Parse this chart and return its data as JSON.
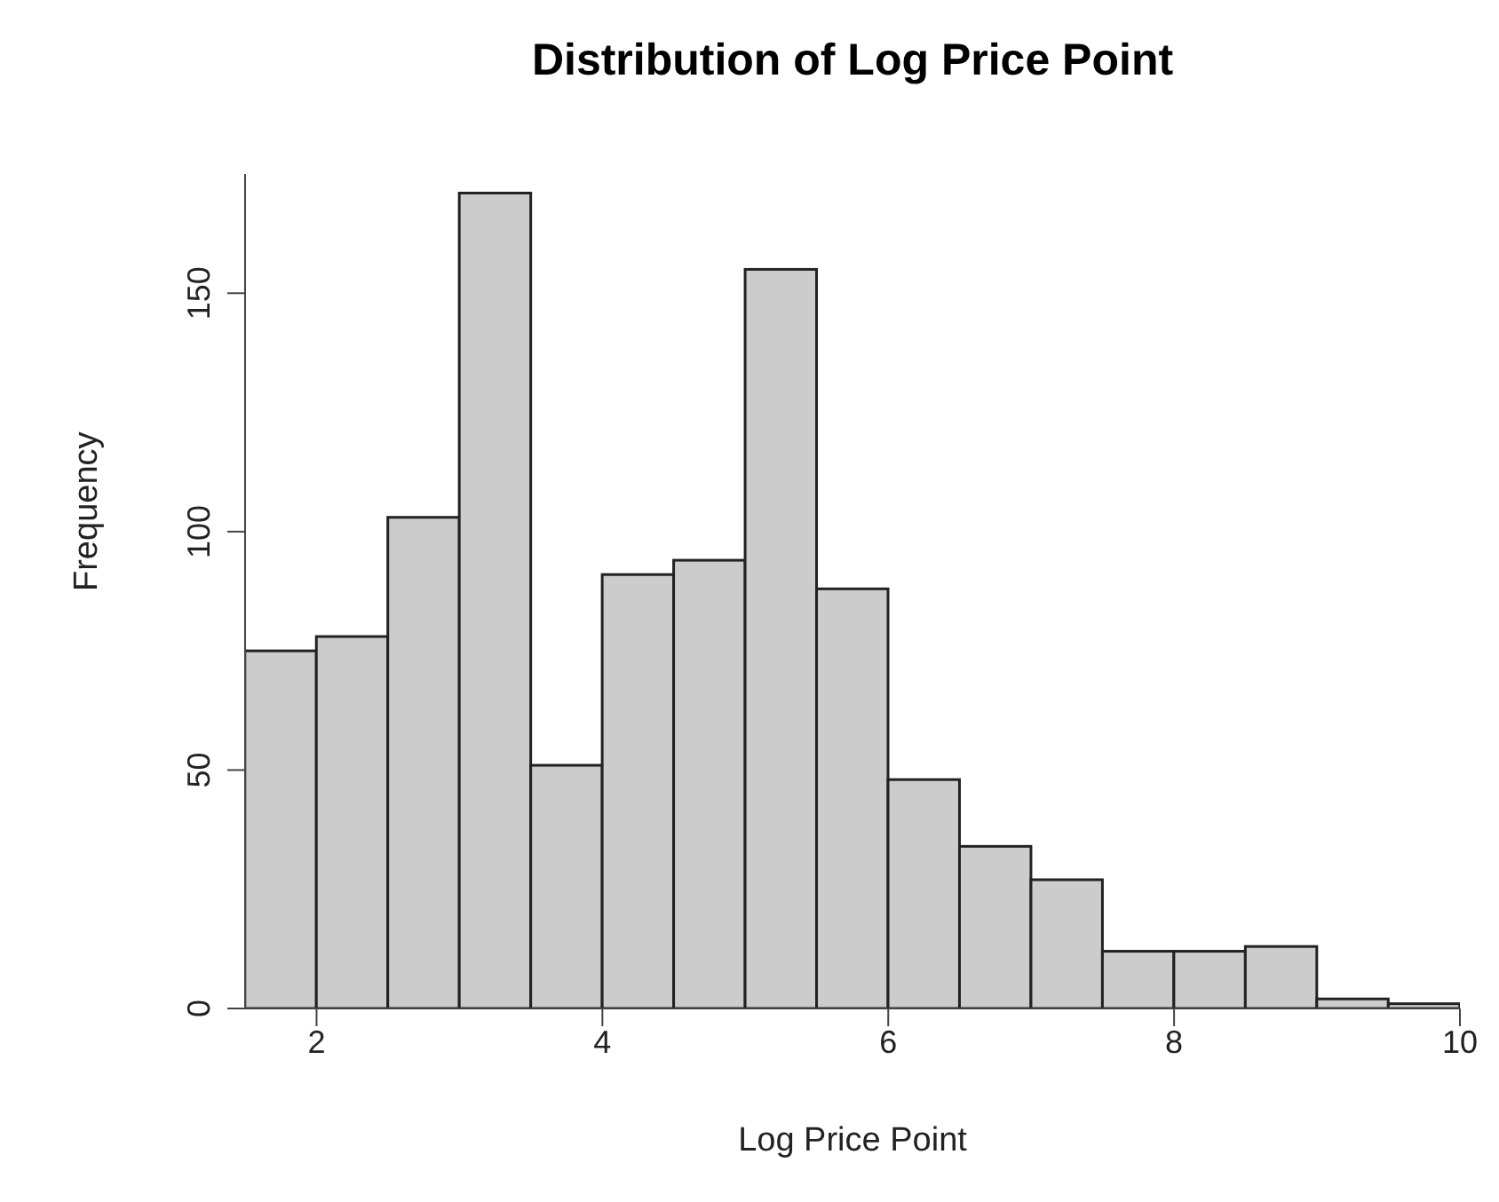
{
  "chart_data": {
    "type": "histogram",
    "title": "Distribution of Log Price Point",
    "xlabel": "Log Price Point",
    "ylabel": "Frequency",
    "bins": [
      1.5,
      2,
      2.5,
      3,
      3.5,
      4,
      4.5,
      5,
      5.5,
      6,
      6.5,
      7,
      7.5,
      8,
      8.5,
      9,
      9.5,
      10
    ],
    "values": [
      75,
      78,
      103,
      171,
      51,
      91,
      94,
      155,
      88,
      48,
      34,
      27,
      12,
      12,
      13,
      2,
      1
    ],
    "color": "#cccccc",
    "xlim": [
      1.5,
      10
    ],
    "xticks": [
      2,
      4,
      6,
      8,
      10
    ],
    "ylim": [
      0,
      175
    ],
    "yticks": [
      0,
      50,
      100,
      150
    ],
    "grid": false,
    "legend": false
  }
}
